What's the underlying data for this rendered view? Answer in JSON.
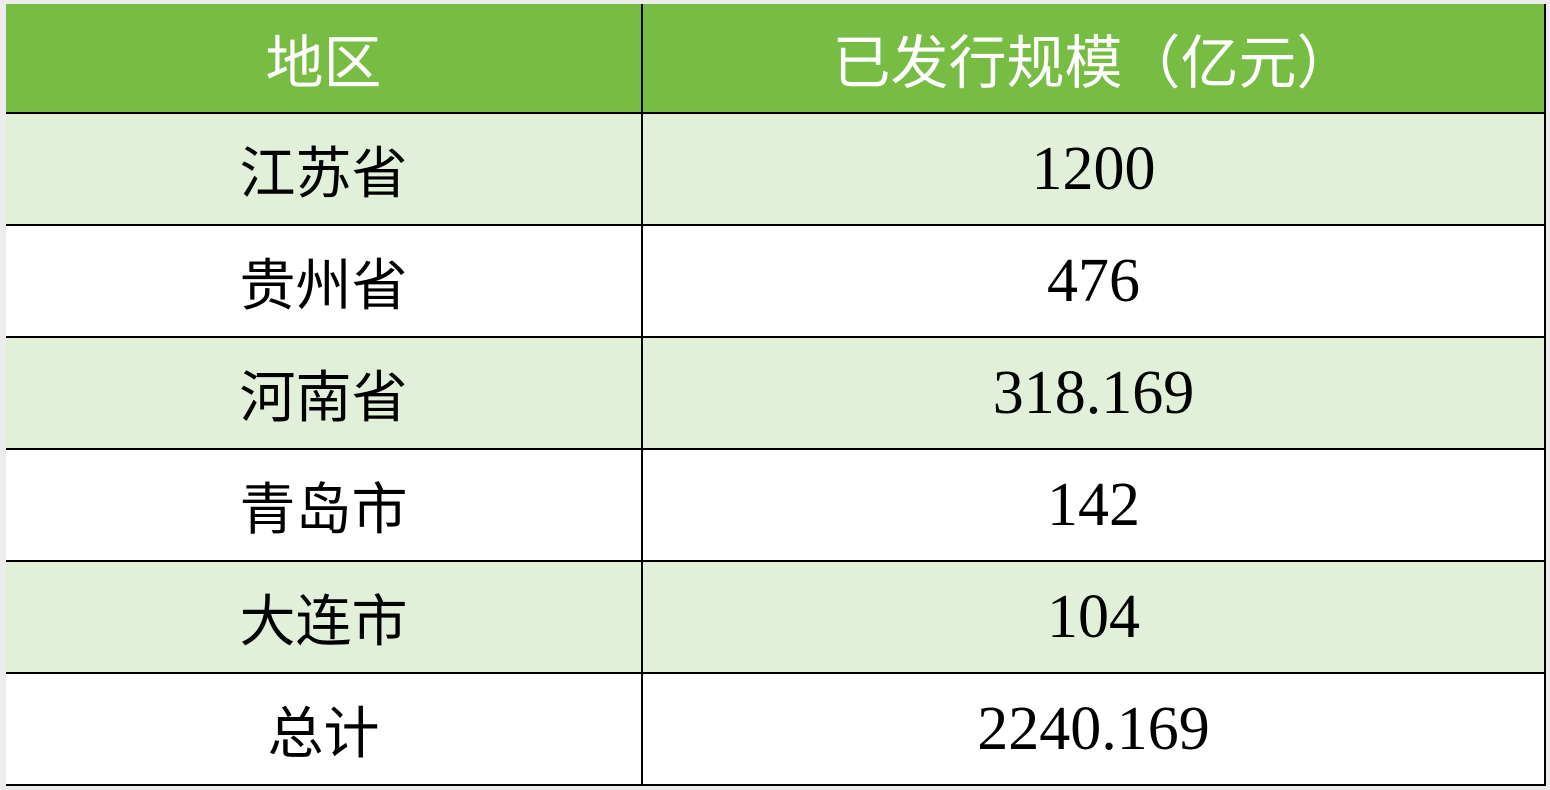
{
  "table": {
    "headers": [
      "地区",
      "已发行规模（亿元）"
    ],
    "rows": [
      [
        "江苏省",
        "1200"
      ],
      [
        "贵州省",
        "476"
      ],
      [
        "河南省",
        "318.169"
      ],
      [
        "青岛市",
        "142"
      ],
      [
        "大连市",
        "104"
      ],
      [
        "总计",
        "2240.169"
      ]
    ]
  },
  "colors": {
    "header_bg": "#77bd43",
    "header_text": "#ffffff",
    "alt_row_bg": "#e2f0d9"
  }
}
